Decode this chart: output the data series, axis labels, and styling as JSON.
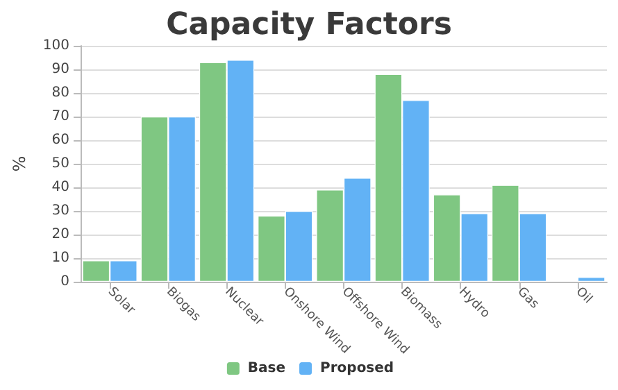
{
  "chart_data": {
    "type": "bar",
    "title": "Capacity Factors",
    "ylabel": "%",
    "categories": [
      "Solar",
      "Biogas",
      "Nuclear",
      "Onshore Wind",
      "Offshore Wind",
      "Biomass",
      "Hydro",
      "Gas",
      "Oil"
    ],
    "series": [
      {
        "name": "Base",
        "color": "#7fc782",
        "values": [
          9,
          70,
          93,
          28,
          39,
          88,
          37,
          41,
          null
        ]
      },
      {
        "name": "Proposed",
        "color": "#62b2f5",
        "values": [
          9,
          70,
          94,
          30,
          44,
          77,
          29,
          29,
          2
        ]
      }
    ],
    "ylim": [
      0,
      100
    ],
    "yticks": [
      0,
      10,
      20,
      30,
      40,
      50,
      60,
      70,
      80,
      90,
      100
    ],
    "grid": "y",
    "legend": "bottom"
  }
}
